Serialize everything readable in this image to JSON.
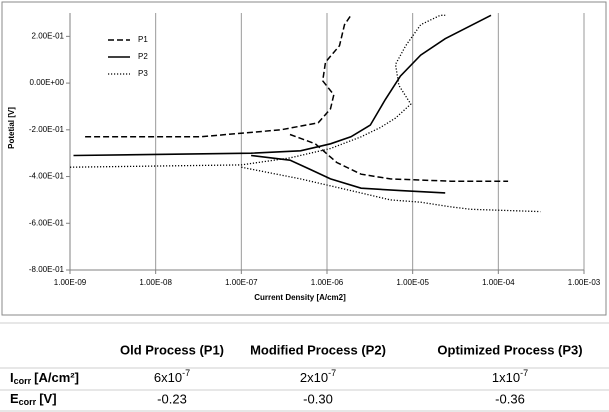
{
  "chart_data": {
    "type": "line",
    "x_label": "Current Density [A/cm2]",
    "y_label": "Potetial [V]",
    "xscale": "log",
    "xlim": [
      1e-09,
      0.001
    ],
    "xticks": [
      {
        "value": 1e-09,
        "label": "1.00E-09"
      },
      {
        "value": 1e-08,
        "label": "1.00E-08"
      },
      {
        "value": 1e-07,
        "label": "1.00E-07"
      },
      {
        "value": 1e-06,
        "label": "1.00E-06"
      },
      {
        "value": 1e-05,
        "label": "1.00E-05"
      },
      {
        "value": 0.0001,
        "label": "1.00E-04"
      },
      {
        "value": 0.001,
        "label": "1.00E-03"
      }
    ],
    "ylim": [
      -0.8,
      0.3
    ],
    "yticks": [
      {
        "value": 0.2,
        "label": "2.00E-01"
      },
      {
        "value": 0,
        "label": "0.00E+00"
      },
      {
        "value": -0.2,
        "label": "-2.00E-01"
      },
      {
        "value": -0.4,
        "label": "-4.00E-01"
      },
      {
        "value": -0.6,
        "label": "-6.00E-01"
      },
      {
        "value": -0.8,
        "label": "-8.00E-01"
      }
    ],
    "grid": "x",
    "legend": "upper left",
    "series": [
      {
        "name": "P1",
        "color": "#000000",
        "dash": "dashed",
        "x": [
          1.5e-09,
          3.3e-08,
          2.9e-07,
          7.9e-07,
          1.1e-06,
          1.2e-06,
          8.9e-07,
          9.6e-07,
          1.4e-06,
          1.6e-06,
          1.9e-06,
          null,
          3.7e-07,
          7.3e-07,
          1.3e-06,
          2.5e-06,
          5.5e-06,
          2.8e-05,
          0.00013
        ],
        "values": [
          -0.23,
          -0.23,
          -0.2,
          -0.17,
          -0.11,
          -0.05,
          0.01,
          0.09,
          0.16,
          0.25,
          0.29,
          null,
          -0.22,
          -0.26,
          -0.34,
          -0.39,
          -0.41,
          -0.42,
          -0.42
        ]
      },
      {
        "name": "P2",
        "color": "#000000",
        "dash": "solid",
        "x": [
          1.1e-09,
          1.3e-07,
          4.9e-07,
          1.1e-06,
          1.9e-06,
          3.2e-06,
          4.8e-06,
          7.2e-06,
          1.24e-05,
          2.4e-05,
          8.2e-05,
          null,
          1.3e-07,
          3.7e-07,
          6.4e-07,
          1.1e-06,
          2.5e-06,
          7.2e-06,
          2.4e-05
        ],
        "values": [
          -0.31,
          -0.3,
          -0.29,
          -0.26,
          -0.23,
          -0.18,
          -0.07,
          0.03,
          0.12,
          0.19,
          0.29,
          null,
          -0.31,
          -0.33,
          -0.37,
          -0.41,
          -0.45,
          -0.46,
          -0.47
        ]
      },
      {
        "name": "P3",
        "color": "#000000",
        "dash": "dotted",
        "x": [
          1e-09,
          1e-07,
          3.7e-07,
          1.1e-06,
          2.5e-06,
          4.2e-06,
          6.3e-06,
          9.5e-06,
          6.9e-06,
          6.3e-06,
          8.3e-06,
          1.24e-05,
          2.1e-05,
          2.4e-05,
          null,
          1e-07,
          4.9e-07,
          1.9e-06,
          5.5e-06,
          1.24e-05,
          2.8e-05,
          4.8e-05,
          0.00031
        ],
        "values": [
          -0.36,
          -0.35,
          -0.32,
          -0.28,
          -0.23,
          -0.19,
          -0.15,
          -0.09,
          -0.01,
          0.08,
          0.16,
          0.25,
          0.29,
          0.29,
          null,
          -0.36,
          -0.41,
          -0.46,
          -0.5,
          -0.51,
          -0.53,
          -0.54,
          -0.55
        ]
      }
    ]
  },
  "table": {
    "columns": [
      "Old Process (P1)",
      "Modified Process (P2)",
      "Optimized Process (P3)"
    ],
    "rows": [
      {
        "label": {
          "main": "I",
          "sub": "corr",
          "unit": "[A/cm²]"
        },
        "cells": [
          {
            "base": "6x10",
            "exp": "-7"
          },
          {
            "base": "2x10",
            "exp": "-7"
          },
          {
            "base": "1x10",
            "exp": "-7"
          }
        ]
      },
      {
        "label": {
          "main": "E",
          "sub": "corr",
          "unit": "[V]"
        },
        "cells": [
          "-0.23",
          "-0.30",
          "-0.36"
        ]
      }
    ]
  }
}
